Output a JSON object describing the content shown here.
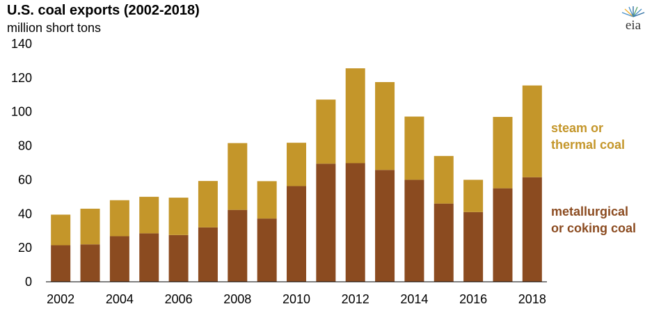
{
  "chart_data": {
    "type": "bar",
    "stacked": true,
    "title": "U.S. coal exports (2002-2018)",
    "subtitle": "million short tons",
    "logo_text": "eia",
    "categories": [
      "2002",
      "2003",
      "2004",
      "2005",
      "2006",
      "2007",
      "2008",
      "2009",
      "2010",
      "2011",
      "2012",
      "2013",
      "2014",
      "2015",
      "2016",
      "2017",
      "2018"
    ],
    "x_tick_labels": [
      "2002",
      "2004",
      "2006",
      "2008",
      "2010",
      "2012",
      "2014",
      "2016",
      "2018"
    ],
    "ylim": [
      0,
      140
    ],
    "y_ticks": [
      "0",
      "20",
      "40",
      "60",
      "80",
      "100",
      "120",
      "140"
    ],
    "grid": false,
    "series": [
      {
        "name": "metallurgical or coking coal",
        "legend_lines": [
          "metallurgical",
          "or coking coal"
        ],
        "color": "#8B4B20",
        "values": [
          21.5,
          22,
          26.8,
          28.5,
          27.5,
          32,
          42.3,
          37.2,
          56.3,
          69.5,
          69.8,
          65.8,
          60,
          46,
          41,
          55,
          61.5
        ]
      },
      {
        "name": "steam or thermal coal",
        "legend_lines": [
          "steam or",
          "thermal coal"
        ],
        "color": "#C4962A",
        "values": [
          18,
          21,
          21.2,
          21.5,
          22,
          27.3,
          39.3,
          22,
          25.5,
          37.7,
          55.8,
          51.7,
          37.2,
          28,
          19,
          42,
          54
        ]
      }
    ]
  }
}
